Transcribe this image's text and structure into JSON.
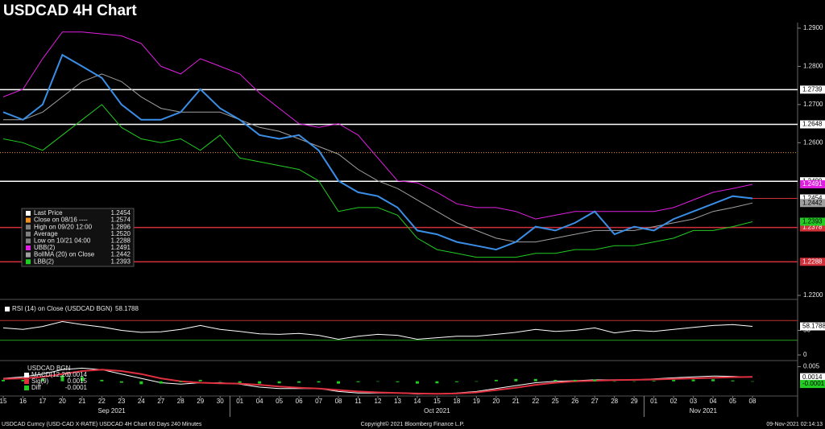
{
  "chart_data": [
    {
      "type": "line",
      "title": "USDCAD 4H Chart",
      "categories": [
        "15",
        "16",
        "17",
        "20",
        "21",
        "22",
        "23",
        "24",
        "27",
        "28",
        "29",
        "30",
        "01",
        "04",
        "05",
        "06",
        "07",
        "08",
        "11",
        "12",
        "13",
        "14",
        "15",
        "18",
        "19",
        "20",
        "21",
        "22",
        "25",
        "26",
        "27",
        "28",
        "29",
        "01",
        "02",
        "03",
        "04",
        "05",
        "08"
      ],
      "months": [
        "Sep 2021",
        "Oct 2021",
        "Nov 2021"
      ],
      "ylim": [
        1.22,
        1.29
      ],
      "yticks": [
        {
          "value": 1.29,
          "label": "1.2900"
        },
        {
          "value": 1.28,
          "label": "1.2800"
        },
        {
          "value": 1.27,
          "label": "1.2700"
        },
        {
          "value": 1.26,
          "label": "1.2600"
        },
        {
          "value": 1.22,
          "label": "1.2200"
        }
      ],
      "levels": [
        {
          "value": 1.2739,
          "color": "#ffffff"
        },
        {
          "value": 1.2648,
          "color": "#ffffff"
        },
        {
          "value": 1.2499,
          "color": "#ffffff"
        },
        {
          "value": 1.2378,
          "color": "#d0303a"
        },
        {
          "value": 1.2288,
          "color": "#d0303a"
        }
      ],
      "series": [
        {
          "color": "#e020e0",
          "values": [
            1.272,
            1.274,
            1.282,
            1.289,
            1.289,
            1.2885,
            1.288,
            1.286,
            1.28,
            1.278,
            1.282,
            1.28,
            1.278,
            1.273,
            1.269,
            1.265,
            1.264,
            1.265,
            1.262,
            1.256,
            1.25,
            1.2495,
            1.247,
            1.244,
            1.243,
            1.243,
            1.242,
            1.24,
            1.241,
            1.242,
            1.242,
            1.242,
            1.242,
            1.242,
            1.243,
            1.245,
            1.247,
            1.248,
            1.2491
          ]
        },
        {
          "color": "#a0a0a0",
          "values": [
            1.266,
            1.266,
            1.268,
            1.272,
            1.276,
            1.278,
            1.276,
            1.272,
            1.269,
            1.268,
            1.268,
            1.268,
            1.266,
            1.264,
            1.263,
            1.261,
            1.259,
            1.257,
            1.253,
            1.25,
            1.248,
            1.245,
            1.242,
            1.239,
            1.237,
            1.235,
            1.234,
            1.234,
            1.235,
            1.236,
            1.237,
            1.237,
            1.237,
            1.238,
            1.239,
            1.24,
            1.242,
            1.243,
            1.2442
          ]
        },
        {
          "color": "#22cc22",
          "values": [
            1.261,
            1.26,
            1.258,
            1.262,
            1.266,
            1.27,
            1.264,
            1.261,
            1.26,
            1.261,
            1.258,
            1.262,
            1.256,
            1.255,
            1.254,
            1.253,
            1.25,
            1.242,
            1.243,
            1.243,
            1.241,
            1.235,
            1.232,
            1.231,
            1.23,
            1.23,
            1.23,
            1.231,
            1.231,
            1.232,
            1.232,
            1.233,
            1.233,
            1.234,
            1.235,
            1.237,
            1.237,
            1.238,
            1.2393
          ]
        },
        {
          "color": "#3a8ee6",
          "values": [
            1.268,
            1.266,
            1.27,
            1.283,
            1.28,
            1.277,
            1.27,
            1.266,
            1.266,
            1.268,
            1.274,
            1.269,
            1.266,
            1.262,
            1.261,
            1.262,
            1.258,
            1.25,
            1.247,
            1.246,
            1.243,
            1.237,
            1.236,
            1.234,
            1.233,
            1.232,
            1.234,
            1.238,
            1.237,
            1.239,
            1.242,
            1.236,
            1.238,
            1.237,
            1.24,
            1.242,
            1.244,
            1.246,
            1.2454
          ]
        }
      ],
      "legend": [
        {
          "name": "Last Price",
          "color": "#ffffff",
          "value": 1.2454
        },
        {
          "name": "Close on 08/16 ----",
          "color": "#f09020",
          "value": 1.2574
        },
        {
          "name": "High on 09/20 12:00",
          "color": "#808080",
          "value": 1.2896
        },
        {
          "name": "Average",
          "color": "#808080",
          "value": 1.252,
          "value_label": "1.2520"
        },
        {
          "name": "Low on 10/21 04:00",
          "color": "#808080",
          "value": 1.2288
        },
        {
          "name": "UBB(2)",
          "color": "#e020e0",
          "value": 1.2491
        },
        {
          "name": "BollMA (20)  on Close",
          "color": "#a0a0a0",
          "value": 1.2442
        },
        {
          "name": "LBB(2)",
          "color": "#22cc22",
          "value": 1.2393
        }
      ]
    },
    {
      "type": "line",
      "title": "RSI (14)  on Close (USDCAD BGN)",
      "ylim": [
        0,
        100
      ],
      "yticks": [
        0,
        50
      ],
      "levels": [
        {
          "value": 70,
          "color": "#c03030"
        },
        {
          "value": 30,
          "color": "#20a020"
        }
      ],
      "series": [
        {
          "color": "#ffffff",
          "values": [
            55,
            52,
            58,
            68,
            62,
            57,
            50,
            46,
            47,
            52,
            60,
            52,
            48,
            43,
            42,
            44,
            40,
            32,
            38,
            42,
            40,
            32,
            35,
            38,
            38,
            42,
            46,
            52,
            48,
            50,
            55,
            45,
            50,
            48,
            52,
            56,
            60,
            62,
            58.1788
          ]
        }
      ]
    },
    {
      "type": "line",
      "title": "USDCAD BGN",
      "ylim": [
        -0.0045,
        0.006
      ],
      "yticks": [
        0.005
      ],
      "series": [
        {
          "name": "MACD(12,26)",
          "color": "#ffffff",
          "values": [
            0.001,
            0.0015,
            0.0025,
            0.004,
            0.0045,
            0.004,
            0.0025,
            0.001,
            -0.0005,
            -0.001,
            -0.0005,
            -0.0005,
            -0.001,
            -0.002,
            -0.0025,
            -0.0025,
            -0.0025,
            -0.0035,
            -0.004,
            -0.004,
            -0.004,
            -0.0044,
            -0.0043,
            -0.004,
            -0.0035,
            -0.0025,
            -0.0015,
            -0.0005,
            0,
            0.0002,
            0.0005,
            0.0005,
            0.0005,
            0.0008,
            0.0012,
            0.0015,
            0.0018,
            0.0017,
            0.0014
          ]
        },
        {
          "name": "Sig(9)",
          "color": "#e03040",
          "values": [
            0.0008,
            0.001,
            0.0015,
            0.0025,
            0.0035,
            0.004,
            0.0035,
            0.0025,
            0.001,
            0,
            -0.0005,
            -0.0007,
            -0.0008,
            -0.0012,
            -0.0018,
            -0.0022,
            -0.0025,
            -0.003,
            -0.0035,
            -0.0038,
            -0.004,
            -0.0042,
            -0.0043,
            -0.0042,
            -0.0038,
            -0.003,
            -0.0022,
            -0.0012,
            -0.0005,
            0,
            0.0002,
            0.0004,
            0.0005,
            0.0006,
            0.0008,
            0.001,
            0.0012,
            0.0014,
            0.0015
          ]
        },
        {
          "name": "Diff",
          "color": "#22cc22",
          "type": "bar",
          "values": [
            0.0005,
            0.0005,
            0.001,
            0.002,
            0.0015,
            0.0005,
            -0.0005,
            -0.001,
            -0.0008,
            -0.0003,
            0.0005,
            0,
            -0.0005,
            -0.0008,
            -0.0007,
            -0.0005,
            -0.0004,
            -0.0008,
            -0.0003,
            0,
            -0.0003,
            -0.0008,
            -0.0007,
            -0.0003,
            0,
            0.0005,
            0.0008,
            0.0008,
            0.0005,
            0.0005,
            0.0006,
            0,
            0,
            0.0002,
            0.0005,
            0.0006,
            0.0007,
            0.0003,
            -0.0001
          ]
        }
      ]
    }
  ],
  "footer": {
    "left": "USDCAD Curncy (USD-CAD X-RATE) USDCAD 4H Chart 60 Days 240 Minutes",
    "center": "Copyright© 2021 Bloomberg Finance L.P.",
    "right": "09-Nov-2021 02:14:13"
  }
}
